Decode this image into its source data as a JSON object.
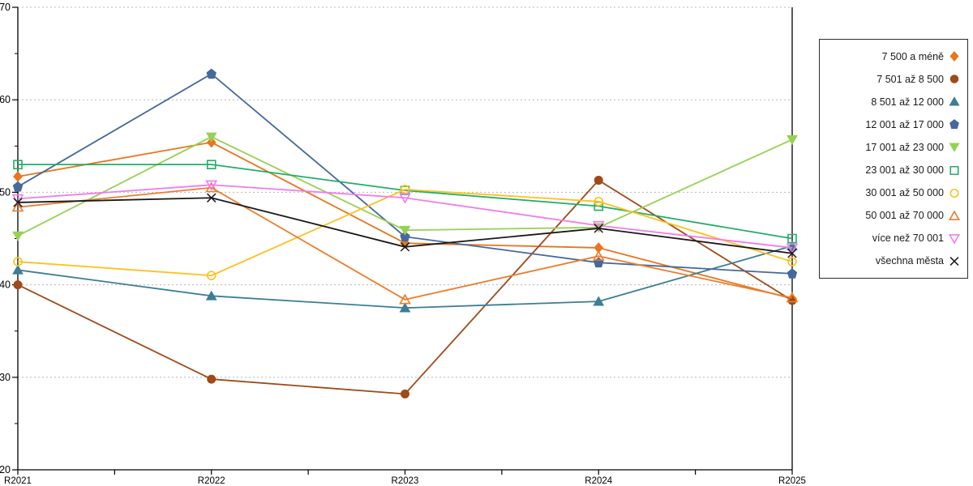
{
  "chart_data": {
    "type": "line",
    "title": "",
    "xlabel": "",
    "ylabel": "",
    "categories": [
      "R2021",
      "R2022",
      "R2023",
      "R2024",
      "R2025"
    ],
    "ylim": [
      20,
      70
    ],
    "y_major_ticks": [
      20,
      30,
      40,
      50,
      60,
      70
    ],
    "y_minor_step": 5,
    "grid": "horizontal-dashed",
    "legend_position": "right",
    "colors": {
      "grid": "#b8b8b8",
      "axis": "#000000",
      "text": "#000000"
    },
    "series": [
      {
        "name": "7 500 a méně",
        "color": "#E8761E",
        "marker": "diamond",
        "fill": "filled",
        "values": [
          51.7,
          55.4,
          44.5,
          44.0,
          38.5
        ]
      },
      {
        "name": "7 501 až 8 500",
        "color": "#9F4A18",
        "marker": "circle",
        "fill": "filled",
        "values": [
          40.0,
          29.8,
          28.2,
          51.3,
          38.3
        ]
      },
      {
        "name": "8 501 až 12 000",
        "color": "#3B7E96",
        "marker": "triangle-up",
        "fill": "filled",
        "values": [
          41.6,
          38.8,
          37.5,
          38.2,
          44.2
        ]
      },
      {
        "name": "12 001 až 17 000",
        "color": "#46699B",
        "marker": "pentagon",
        "fill": "filled",
        "values": [
          50.6,
          62.8,
          45.2,
          42.4,
          41.2
        ]
      },
      {
        "name": "17 001 až 23 000",
        "color": "#97D153",
        "marker": "triangle-down",
        "fill": "filled",
        "values": [
          45.3,
          56.0,
          45.9,
          46.2,
          55.7
        ]
      },
      {
        "name": "23 001 až 30 000",
        "color": "#23AD68",
        "marker": "square",
        "fill": "open",
        "values": [
          53.0,
          53.0,
          50.2,
          48.5,
          45.0
        ]
      },
      {
        "name": "30 001 až 50 000",
        "color": "#FFC01E",
        "marker": "circle",
        "fill": "open",
        "values": [
          42.5,
          41.0,
          50.3,
          49.0,
          42.5
        ]
      },
      {
        "name": "50 001 až 70 000",
        "color": "#ED7D2B",
        "marker": "triangle-up",
        "fill": "open",
        "values": [
          48.4,
          50.5,
          38.4,
          43.1,
          38.6
        ]
      },
      {
        "name": "více než 70 001",
        "color": "#EF7CEC",
        "marker": "triangle-down",
        "fill": "open",
        "values": [
          49.3,
          50.8,
          49.4,
          46.4,
          44.0
        ]
      },
      {
        "name": "všechna města",
        "color": "#1A1A1A",
        "marker": "x",
        "fill": "open",
        "values": [
          48.9,
          49.4,
          44.1,
          46.1,
          43.4
        ]
      }
    ]
  }
}
